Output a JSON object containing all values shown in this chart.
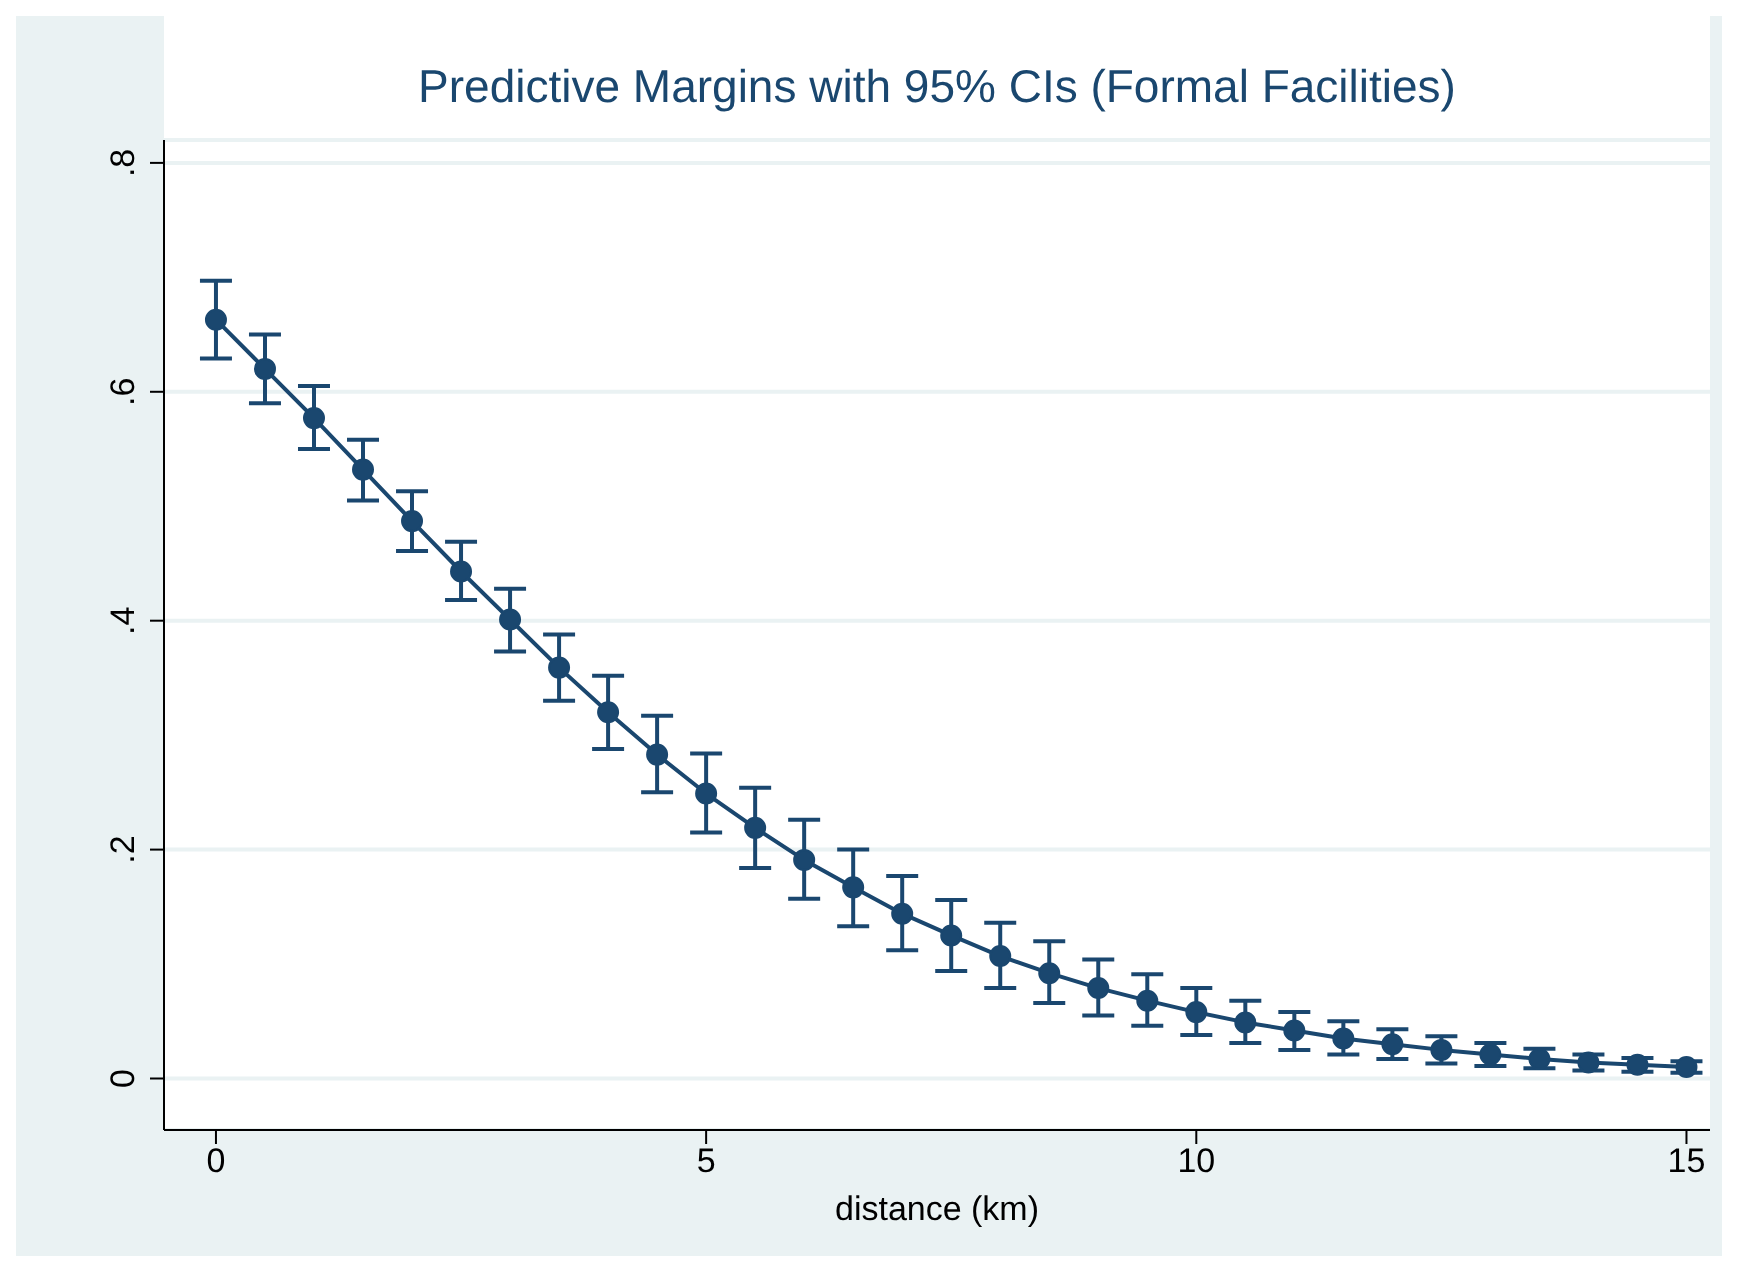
{
  "chart_data": {
    "type": "line",
    "title": "Predictive Margins with 95% CIs (Formal Facilities)",
    "xlabel": "distance (km)",
    "x": [
      0,
      0.5,
      1,
      1.5,
      2,
      2.5,
      3,
      3.5,
      4,
      4.5,
      5,
      5.5,
      6,
      6.5,
      7,
      7.5,
      8,
      8.5,
      9,
      9.5,
      10,
      10.5,
      11,
      11.5,
      12,
      12.5,
      13,
      13.5,
      14,
      14.5,
      15
    ],
    "series": [
      {
        "color": "#1a476f",
        "values": [
          0.663,
          0.62,
          0.577,
          0.532,
          0.487,
          0.443,
          0.401,
          0.359,
          0.32,
          0.283,
          0.249,
          0.219,
          0.191,
          0.167,
          0.144,
          0.125,
          0.107,
          0.092,
          0.079,
          0.068,
          0.058,
          0.049,
          0.042,
          0.035,
          0.03,
          0.025,
          0.021,
          0.017,
          0.014,
          0.012,
          0.01
        ],
        "errors": [
          [
            0.629,
            0.697
          ],
          [
            0.59,
            0.65
          ],
          [
            0.55,
            0.605
          ],
          [
            0.505,
            0.558
          ],
          [
            0.461,
            0.513
          ],
          [
            0.418,
            0.469
          ],
          [
            0.373,
            0.428
          ],
          [
            0.33,
            0.388
          ],
          [
            0.288,
            0.352
          ],
          [
            0.25,
            0.317
          ],
          [
            0.215,
            0.284
          ],
          [
            0.184,
            0.254
          ],
          [
            0.157,
            0.226
          ],
          [
            0.133,
            0.2
          ],
          [
            0.112,
            0.177
          ],
          [
            0.094,
            0.156
          ],
          [
            0.079,
            0.136
          ],
          [
            0.066,
            0.12
          ],
          [
            0.055,
            0.104
          ],
          [
            0.046,
            0.091
          ],
          [
            0.038,
            0.079
          ],
          [
            0.031,
            0.068
          ],
          [
            0.025,
            0.058
          ],
          [
            0.021,
            0.05
          ],
          [
            0.017,
            0.043
          ],
          [
            0.013,
            0.037
          ],
          [
            0.011,
            0.031
          ],
          [
            0.009,
            0.026
          ],
          [
            0.007,
            0.021
          ],
          [
            0.006,
            0.018
          ],
          [
            0.005,
            0.015
          ]
        ]
      }
    ],
    "xlim": [
      -0.53,
      15.24
    ],
    "xticks": [
      0,
      5,
      10,
      15
    ],
    "ylim": [
      -0.045,
      0.82
    ],
    "yticks": [
      {
        "value": 0,
        "label": "0"
      },
      {
        "value": 0.2,
        "label": ".2"
      },
      {
        "value": 0.4,
        "label": ".4"
      },
      {
        "value": 0.6,
        "label": ".6"
      },
      {
        "value": 0.8,
        "label": ".8"
      }
    ],
    "grid": "y",
    "marker": "circle",
    "line_style": "solid",
    "legend": false
  }
}
